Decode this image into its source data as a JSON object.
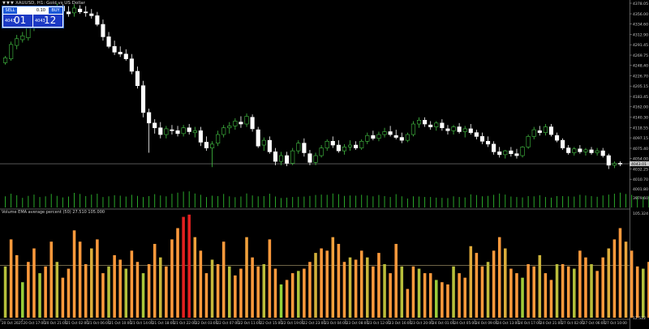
{
  "window": {
    "title": "XAUUSD, H1: Gold vs US Dollar",
    "toolbar_icons": [
      "triangle-down-icon",
      "triangle-down-icon",
      "triangle-down-icon"
    ]
  },
  "trade_panel": {
    "sell_label": "SELL",
    "buy_label": "BUY",
    "lot_value": "0.10",
    "sell_price_small": "4043",
    "sell_price_big": "01",
    "buy_price_small": "4043",
    "buy_price_big": "12"
  },
  "indicator": {
    "label": "Volume EMA average percent (50) 27.510 105.000"
  },
  "colors": {
    "background": "#000000",
    "axis_text": "#cfcfcf",
    "level_line": "#b0a070",
    "current_price_line": "#8a8a8a",
    "bull_candle": "#44c244",
    "bear_candle": "#ffffff",
    "volume_bar": "#2fb82f",
    "indicator_high": "#e32020",
    "indicator_mid": "#ff9a3c",
    "indicator_low": "#8ed43a"
  },
  "chart_data": [
    {
      "type": "candlestick",
      "symbol": "XAUUSD",
      "timeframe": "H1",
      "ylim": [
        3995.8,
        4378.05
      ],
      "price_axis_ticks": [
        "4378.05",
        "4356.00",
        "4334.60",
        "4312.90",
        "4291.45",
        "4269.75",
        "4248.40",
        "4226.70",
        "4205.15",
        "4183.45",
        "4162.00",
        "4140.30",
        "4118.55",
        "4097.15",
        "4075.40",
        "4054.00",
        "4032.25",
        "4010.70"
      ],
      "current_price": "4043.01",
      "volume_axis_ticks": [
        "4001.80",
        "3979.60"
      ],
      "x_axis_labels": [
        "20 Oct 2025",
        "20 Oct 17:00",
        "20 Oct 21:00",
        "21 Oct 02:00",
        "21 Oct 06:00",
        "21 Oct 10:00",
        "21 Oct 14:00",
        "21 Oct 18:00",
        "21 Oct 22:00",
        "22 Oct 03:00",
        "22 Oct 07:00",
        "22 Oct 11:00",
        "22 Oct 15:00",
        "22 Oct 19:00",
        "22 Oct 23:00",
        "23 Oct 04:00",
        "23 Oct 08:00",
        "23 Oct 12:00",
        "23 Oct 16:00",
        "23 Oct 20:00",
        "24 Oct 01:00",
        "24 Oct 05:00",
        "24 Oct 09:00",
        "24 Oct 13:00",
        "24 Oct 17:00",
        "24 Oct 21:00",
        "27 Oct 02:00",
        "27 Oct 06:00",
        "27 Oct 10:00"
      ],
      "candles": [
        [
          4254,
          4268,
          4250,
          4264
        ],
        [
          4262,
          4298,
          4258,
          4292
        ],
        [
          4290,
          4312,
          4282,
          4304
        ],
        [
          4302,
          4318,
          4296,
          4310
        ],
        [
          4306,
          4338,
          4300,
          4330
        ],
        [
          4328,
          4352,
          4320,
          4346
        ],
        [
          4344,
          4370,
          4338,
          4362
        ],
        [
          4360,
          4372,
          4340,
          4348
        ],
        [
          4350,
          4370,
          4344,
          4364
        ],
        [
          4364,
          4378,
          4354,
          4372
        ],
        [
          4372,
          4376,
          4356,
          4362
        ],
        [
          4360,
          4372,
          4350,
          4356
        ],
        [
          4358,
          4376,
          4350,
          4368
        ],
        [
          4366,
          4374,
          4356,
          4360
        ],
        [
          4360,
          4372,
          4350,
          4358
        ],
        [
          4356,
          4366,
          4346,
          4352
        ],
        [
          4352,
          4360,
          4330,
          4334
        ],
        [
          4334,
          4344,
          4300,
          4308
        ],
        [
          4308,
          4318,
          4284,
          4288
        ],
        [
          4288,
          4300,
          4270,
          4276
        ],
        [
          4276,
          4288,
          4266,
          4272
        ],
        [
          4272,
          4282,
          4258,
          4262
        ],
        [
          4262,
          4272,
          4230,
          4236
        ],
        [
          4236,
          4246,
          4200,
          4206
        ],
        [
          4206,
          4216,
          4140,
          4150
        ],
        [
          4150,
          4158,
          4066,
          4128
        ],
        [
          4128,
          4136,
          4106,
          4118
        ],
        [
          4118,
          4130,
          4096,
          4104
        ],
        [
          4104,
          4122,
          4096,
          4116
        ],
        [
          4114,
          4124,
          4104,
          4112
        ],
        [
          4112,
          4122,
          4100,
          4106
        ],
        [
          4106,
          4124,
          4100,
          4118
        ],
        [
          4118,
          4126,
          4104,
          4110
        ],
        [
          4108,
          4120,
          4098,
          4112
        ],
        [
          4112,
          4120,
          4080,
          4088
        ],
        [
          4088,
          4100,
          4070,
          4076
        ],
        [
          4076,
          4090,
          4036,
          4084
        ],
        [
          4086,
          4112,
          4080,
          4104
        ],
        [
          4104,
          4124,
          4098,
          4118
        ],
        [
          4118,
          4130,
          4106,
          4122
        ],
        [
          4122,
          4138,
          4114,
          4132
        ],
        [
          4130,
          4142,
          4118,
          4126
        ],
        [
          4126,
          4148,
          4120,
          4142
        ],
        [
          4140,
          4146,
          4110,
          4116
        ],
        [
          4114,
          4120,
          4076,
          4080
        ],
        [
          4082,
          4098,
          4070,
          4092
        ],
        [
          4092,
          4100,
          4064,
          4068
        ],
        [
          4068,
          4076,
          4040,
          4048
        ],
        [
          4048,
          4068,
          4040,
          4060
        ],
        [
          4060,
          4068,
          4038,
          4044
        ],
        [
          4044,
          4076,
          4040,
          4070
        ],
        [
          4070,
          4092,
          4064,
          4086
        ],
        [
          4086,
          4096,
          4058,
          4066
        ],
        [
          4064,
          4072,
          4040,
          4046
        ],
        [
          4046,
          4066,
          4040,
          4060
        ],
        [
          4060,
          4082,
          4056,
          4076
        ],
        [
          4076,
          4094,
          4070,
          4090
        ],
        [
          4090,
          4100,
          4076,
          4082
        ],
        [
          4082,
          4092,
          4066,
          4070
        ],
        [
          4070,
          4084,
          4062,
          4078
        ],
        [
          4078,
          4092,
          4070,
          4082
        ],
        [
          4082,
          4090,
          4072,
          4076
        ],
        [
          4076,
          4094,
          4072,
          4090
        ],
        [
          4090,
          4108,
          4084,
          4102
        ],
        [
          4102,
          4112,
          4092,
          4096
        ],
        [
          4096,
          4110,
          4090,
          4104
        ],
        [
          4104,
          4118,
          4098,
          4110
        ],
        [
          4110,
          4122,
          4100,
          4104
        ],
        [
          4102,
          4114,
          4094,
          4098
        ],
        [
          4098,
          4108,
          4086,
          4092
        ],
        [
          4092,
          4108,
          4088,
          4104
        ],
        [
          4104,
          4132,
          4100,
          4126
        ],
        [
          4126,
          4140,
          4118,
          4134
        ],
        [
          4134,
          4140,
          4120,
          4126
        ],
        [
          4124,
          4132,
          4114,
          4120
        ],
        [
          4120,
          4132,
          4112,
          4128
        ],
        [
          4128,
          4136,
          4112,
          4118
        ],
        [
          4116,
          4124,
          4104,
          4112
        ],
        [
          4112,
          4124,
          4104,
          4120
        ],
        [
          4120,
          4128,
          4106,
          4110
        ],
        [
          4110,
          4122,
          4098,
          4116
        ],
        [
          4116,
          4126,
          4104,
          4108
        ],
        [
          4108,
          4114,
          4094,
          4100
        ],
        [
          4100,
          4108,
          4084,
          4090
        ],
        [
          4090,
          4100,
          4078,
          4084
        ],
        [
          4084,
          4090,
          4062,
          4068
        ],
        [
          4068,
          4078,
          4056,
          4062
        ],
        [
          4062,
          4072,
          4054,
          4070
        ],
        [
          4070,
          4078,
          4058,
          4064
        ],
        [
          4064,
          4074,
          4054,
          4060
        ],
        [
          4060,
          4080,
          4056,
          4078
        ],
        [
          4078,
          4104,
          4074,
          4100
        ],
        [
          4100,
          4120,
          4094,
          4114
        ],
        [
          4112,
          4122,
          4102,
          4108
        ],
        [
          4108,
          4126,
          4102,
          4120
        ],
        [
          4120,
          4126,
          4100,
          4104
        ],
        [
          4102,
          4108,
          4088,
          4092
        ],
        [
          4092,
          4096,
          4072,
          4076
        ],
        [
          4076,
          4082,
          4062,
          4066
        ],
        [
          4066,
          4078,
          4060,
          4074
        ],
        [
          4074,
          4082,
          4064,
          4068
        ],
        [
          4068,
          4076,
          4060,
          4072
        ],
        [
          4072,
          4078,
          4062,
          4066
        ],
        [
          4066,
          4076,
          4060,
          4070
        ],
        [
          4070,
          4076,
          4056,
          4060
        ],
        [
          4060,
          4064,
          4032,
          4040
        ],
        [
          4040,
          4048,
          4034,
          4044
        ],
        [
          4044,
          4048,
          4038,
          4043
        ]
      ]
    },
    {
      "type": "bar",
      "title": "Volume EMA average percent (50) 27.510 105.000",
      "ylim": [
        12.522,
        105.324
      ],
      "y_ticks": [
        "105.324",
        "12.522"
      ],
      "reference_level": 58.9,
      "values": [
        58,
        82,
        68,
        44,
        62,
        74,
        52,
        58,
        80,
        62,
        48,
        56,
        90,
        80,
        60,
        74,
        82,
        52,
        58,
        68,
        64,
        56,
        72,
        62,
        52,
        60,
        78,
        66,
        58,
        82,
        92,
        102,
        104,
        84,
        72,
        52,
        64,
        60,
        80,
        58,
        50,
        56,
        84,
        66,
        58,
        60,
        82,
        56,
        42,
        46,
        52,
        54,
        56,
        62,
        70,
        74,
        72,
        84,
        78,
        62,
        66,
        64,
        72,
        66,
        58,
        70,
        60,
        52,
        78,
        58,
        38,
        58,
        56,
        52,
        52,
        46,
        44,
        42,
        58,
        52,
        48,
        76,
        70,
        58,
        62,
        72,
        84,
        74,
        56,
        52,
        48,
        60,
        58,
        68,
        52,
        46,
        60,
        60,
        58,
        56,
        72,
        66,
        60,
        54,
        66,
        74,
        82,
        92,
        80,
        72,
        58,
        56,
        62,
        52,
        48,
        58,
        62,
        56,
        66,
        70,
        74,
        58,
        62,
        14
      ]
    }
  ]
}
